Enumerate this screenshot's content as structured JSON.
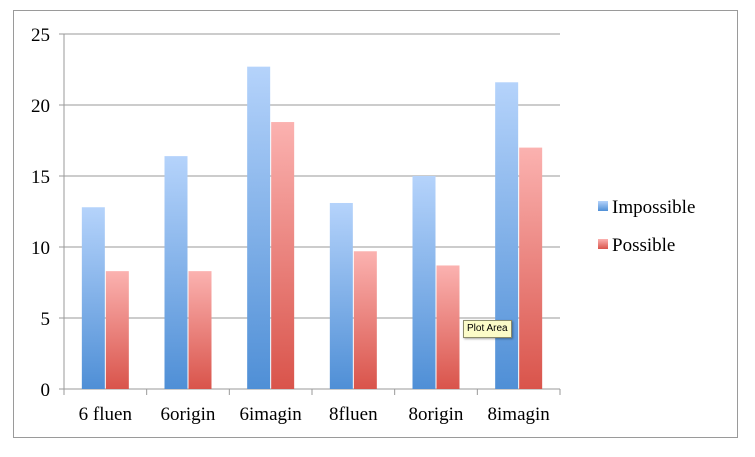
{
  "chart_data": {
    "type": "bar",
    "categories": [
      "6 fluen",
      "6origin",
      "6imagin",
      "8fluen",
      "8origin",
      "8imagin"
    ],
    "series": [
      {
        "name": "Impossible",
        "values": [
          12.8,
          16.4,
          22.7,
          13.1,
          15.0,
          21.6
        ],
        "color": "#5b9bd5"
      },
      {
        "name": "Possible",
        "values": [
          8.3,
          8.3,
          18.8,
          9.7,
          8.7,
          17.0
        ],
        "color": "#e05a52"
      }
    ],
    "ylim": [
      0,
      25
    ],
    "yticks": [
      0,
      5,
      10,
      15,
      20,
      25
    ],
    "grid": true,
    "legend_position": "right"
  },
  "tooltip": {
    "text": "Plot Area"
  },
  "colors": {
    "impossible_top": "#b5d3fb",
    "impossible_bottom": "#4f8fd6",
    "possible_top": "#fbb2b0",
    "possible_bottom": "#d9544b",
    "gridline": "#9a9a9a"
  }
}
